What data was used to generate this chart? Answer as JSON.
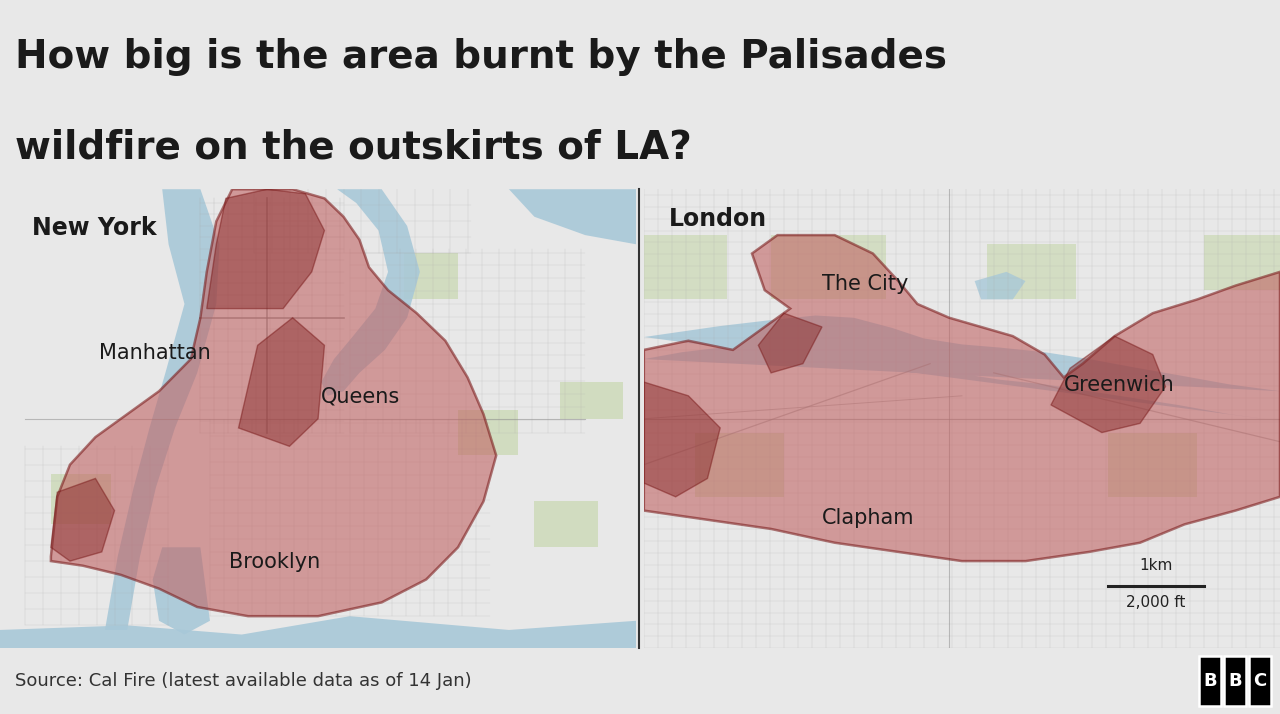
{
  "title_line1": "How big is the area burnt by the Palisades",
  "title_line2": "wildfire on the outskirts of LA?",
  "title_fontsize": 28,
  "title_color": "#1a1a1a",
  "bg_color": "#e8e8e8",
  "map_bg_color": "#f0ece4",
  "water_color": "#a8c8d8",
  "road_color": "#999999",
  "fire_fill_color": "#c06060",
  "fire_edge_color": "#7a1a1a",
  "fire_alpha": 0.58,
  "dark_fill_color": "#8b3030",
  "dark_alpha": 0.5,
  "green_color": "#c8d8b0",
  "label_ny": "New York",
  "label_london": "London",
  "label_manhattan": "Manhattan",
  "label_queens": "Queens",
  "label_brooklyn": "Brooklyn",
  "label_thecity": "The City",
  "label_greenwich": "Greenwich",
  "label_clapham": "Clapham",
  "source_text": "Source: Cal Fire (latest available data as of 14 Jan)",
  "source_fontsize": 13,
  "scale_text_km": "1km",
  "scale_text_ft": "2,000 ft",
  "divider_color": "#333333",
  "footer_bg": "#d8d8d8",
  "label_fontsize": 15,
  "map_label_fontsize": 17
}
